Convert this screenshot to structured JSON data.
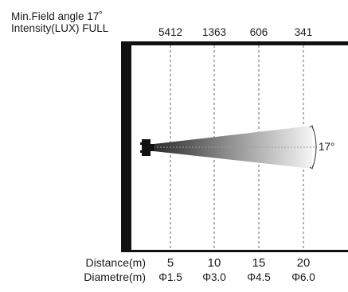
{
  "header": {
    "line1": "Min.Field angle 17˚",
    "line2": "Intensity(LUX) FULL"
  },
  "beam": {
    "angle_label": "17°"
  },
  "columns": [
    {
      "lux": "5412",
      "distance": "5",
      "diameter": "Φ1.5"
    },
    {
      "lux": "1363",
      "distance": "10",
      "diameter": "Φ3.0"
    },
    {
      "lux": "606",
      "distance": "15",
      "diameter": "Φ4.5"
    },
    {
      "lux": "341",
      "distance": "20",
      "diameter": "Φ6.0"
    }
  ],
  "rows": {
    "distance_label": "Distance(m)",
    "diameter_label": "Diametre(m)"
  }
}
